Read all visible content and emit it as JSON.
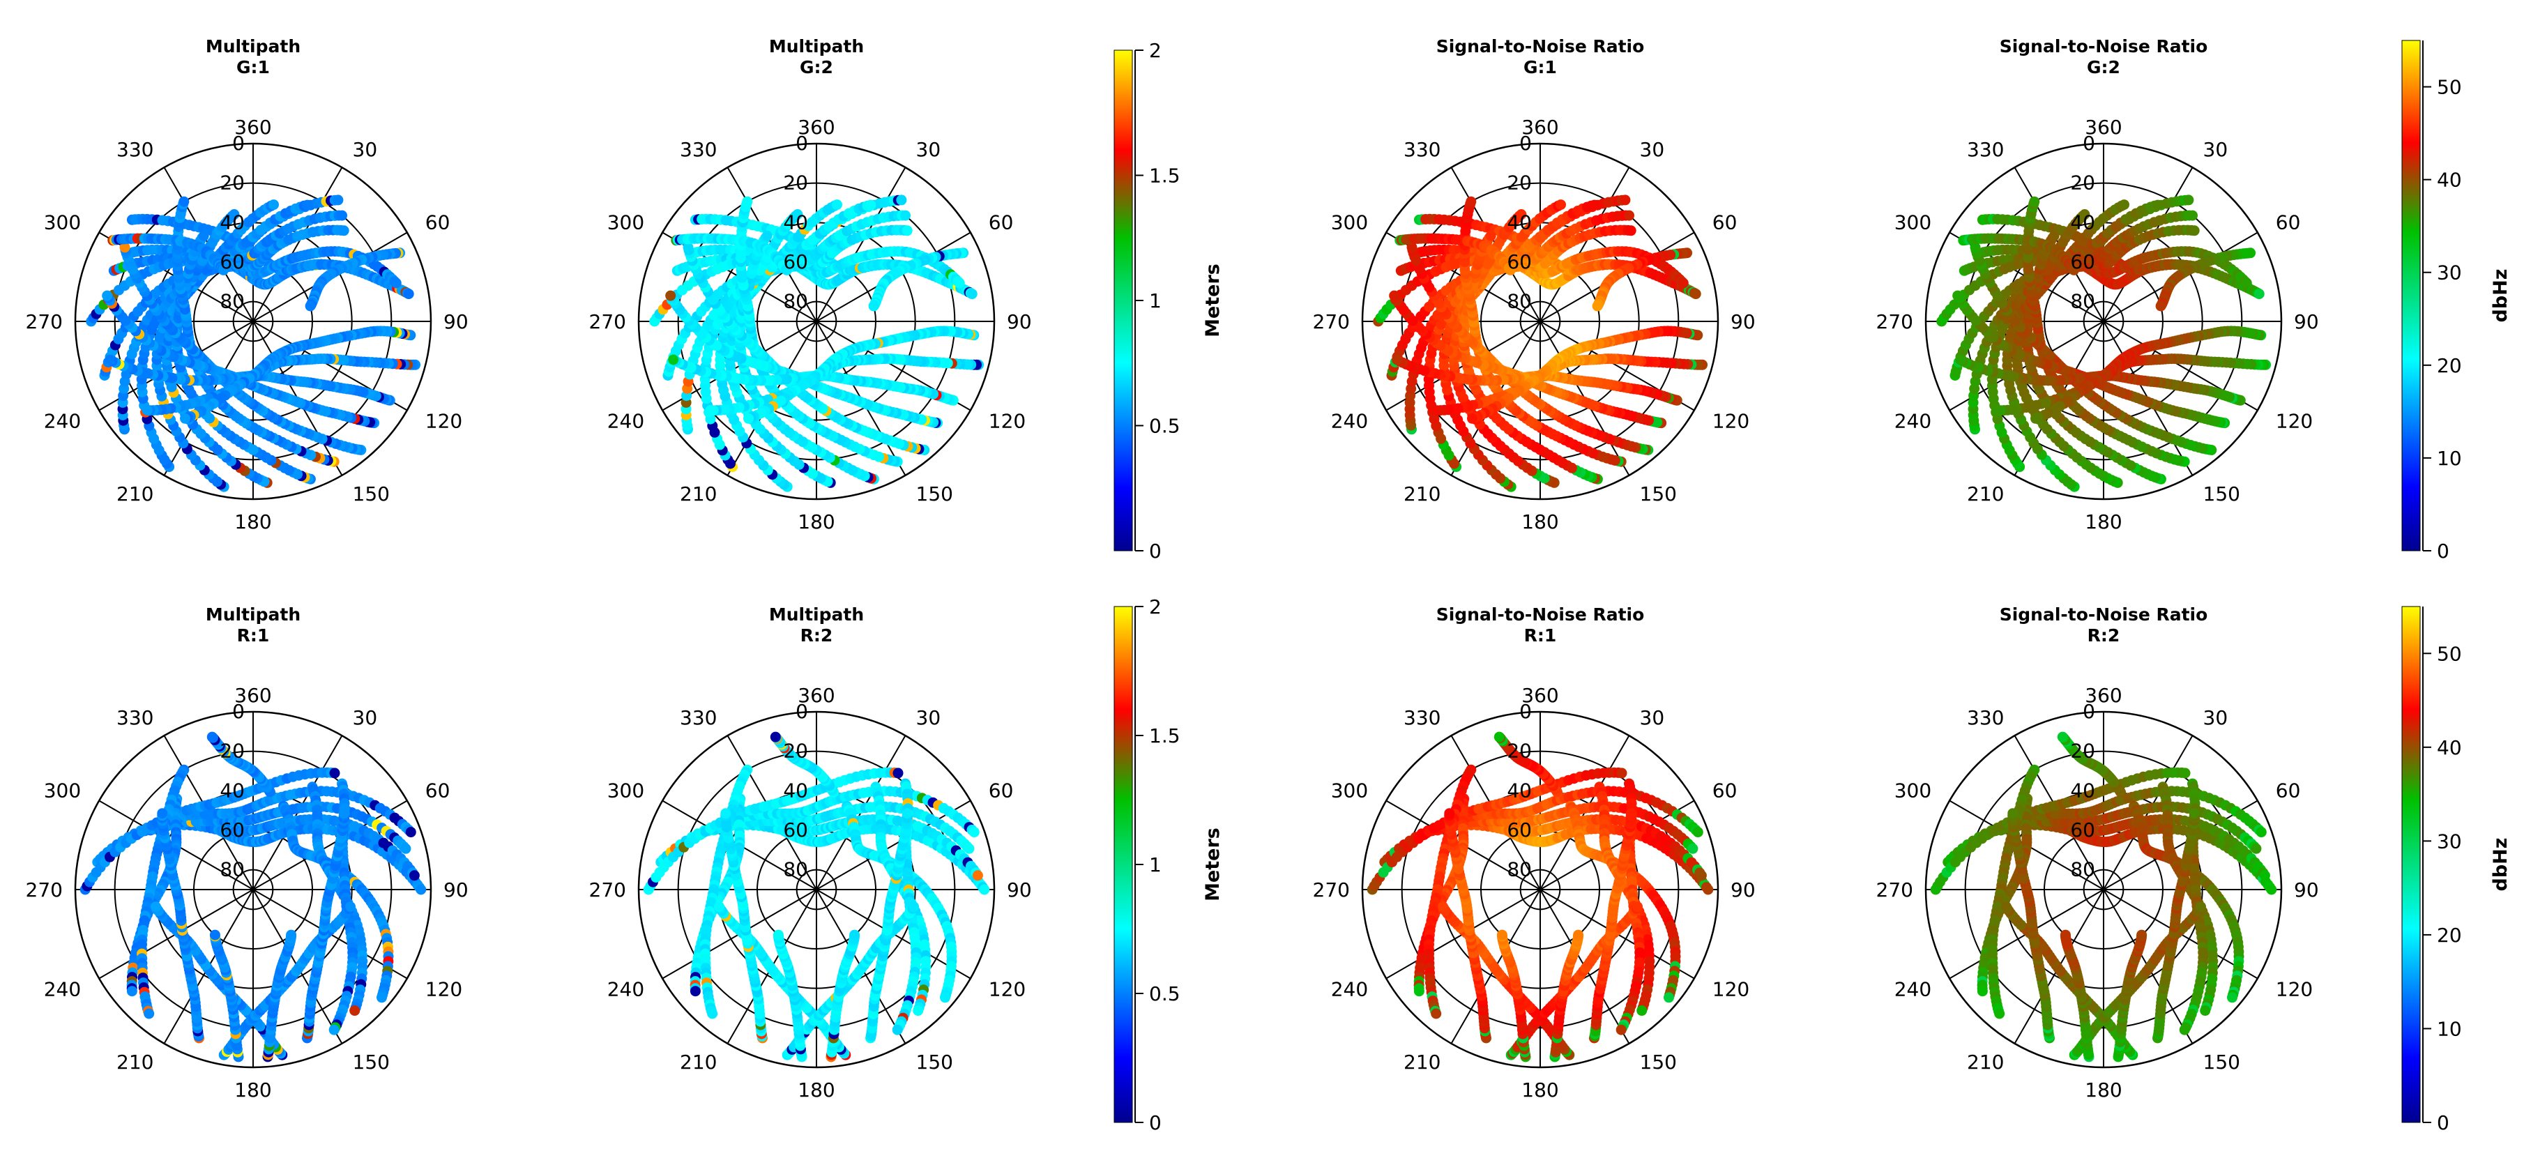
{
  "chart_data": [
    {
      "type": "polar-scatter",
      "title": "Multipath",
      "subtitle": "G:1",
      "metric": "multipath",
      "angle_ticks": [
        "360",
        "30",
        "60",
        "90",
        "120",
        "150",
        "180",
        "210",
        "240",
        "270",
        "300",
        "330"
      ],
      "radial_ticks": [
        "0",
        "20",
        "40",
        "60",
        "80"
      ],
      "color_range": [
        0,
        2
      ],
      "color_unit": "Meters"
    },
    {
      "type": "polar-scatter",
      "title": "Multipath",
      "subtitle": "G:2",
      "metric": "multipath",
      "angle_ticks": [
        "360",
        "30",
        "60",
        "90",
        "120",
        "150",
        "180",
        "210",
        "240",
        "270",
        "300",
        "330"
      ],
      "radial_ticks": [
        "0",
        "20",
        "40",
        "60",
        "80"
      ],
      "color_range": [
        0,
        2
      ],
      "color_unit": "Meters"
    },
    {
      "type": "polar-scatter",
      "title": "Signal-to-Noise Ratio",
      "subtitle": "G:1",
      "metric": "snr",
      "angle_ticks": [
        "360",
        "30",
        "60",
        "90",
        "120",
        "150",
        "180",
        "210",
        "240",
        "270",
        "300",
        "330"
      ],
      "radial_ticks": [
        "0",
        "20",
        "40",
        "60",
        "80"
      ],
      "color_range": [
        0,
        55
      ],
      "color_unit": "dbHz"
    },
    {
      "type": "polar-scatter",
      "title": "Signal-to-Noise Ratio",
      "subtitle": "G:2",
      "metric": "snr",
      "angle_ticks": [
        "360",
        "30",
        "60",
        "90",
        "120",
        "150",
        "180",
        "210",
        "240",
        "270",
        "300",
        "330"
      ],
      "radial_ticks": [
        "0",
        "20",
        "40",
        "60",
        "80"
      ],
      "color_range": [
        0,
        55
      ],
      "color_unit": "dbHz"
    },
    {
      "type": "polar-scatter",
      "title": "Multipath",
      "subtitle": "R:1",
      "metric": "multipath",
      "angle_ticks": [
        "360",
        "30",
        "60",
        "90",
        "120",
        "150",
        "180",
        "210",
        "240",
        "270",
        "300",
        "330"
      ],
      "radial_ticks": [
        "0",
        "20",
        "40",
        "60",
        "80"
      ],
      "color_range": [
        0,
        2
      ],
      "color_unit": "Meters"
    },
    {
      "type": "polar-scatter",
      "title": "Multipath",
      "subtitle": "R:2",
      "metric": "multipath",
      "angle_ticks": [
        "360",
        "30",
        "60",
        "90",
        "120",
        "150",
        "180",
        "210",
        "240",
        "270",
        "300",
        "330"
      ],
      "radial_ticks": [
        "0",
        "20",
        "40",
        "60",
        "80"
      ],
      "color_range": [
        0,
        2
      ],
      "color_unit": "Meters"
    },
    {
      "type": "polar-scatter",
      "title": "Signal-to-Noise Ratio",
      "subtitle": "R:1",
      "metric": "snr",
      "angle_ticks": [
        "360",
        "30",
        "60",
        "90",
        "120",
        "150",
        "180",
        "210",
        "240",
        "270",
        "300",
        "330"
      ],
      "radial_ticks": [
        "0",
        "20",
        "40",
        "60",
        "80"
      ],
      "color_range": [
        0,
        55
      ],
      "color_unit": "dbHz"
    },
    {
      "type": "polar-scatter",
      "title": "Signal-to-Noise Ratio",
      "subtitle": "R:2",
      "metric": "snr",
      "angle_ticks": [
        "360",
        "30",
        "60",
        "90",
        "120",
        "150",
        "180",
        "210",
        "240",
        "270",
        "300",
        "330"
      ],
      "radial_ticks": [
        "0",
        "20",
        "40",
        "60",
        "80"
      ],
      "color_range": [
        0,
        55
      ],
      "color_unit": "dbHz"
    }
  ],
  "colorbars": [
    {
      "metric": "multipath",
      "label": "Meters",
      "ticks": [
        "0",
        "0.5",
        "1",
        "1.5",
        "2"
      ],
      "tick_values": [
        0,
        0.5,
        1,
        1.5,
        2
      ],
      "range": [
        0,
        2
      ]
    },
    {
      "metric": "snr",
      "label": "dbHz",
      "ticks": [
        "0",
        "10",
        "20",
        "30",
        "40",
        "50"
      ],
      "tick_values": [
        0,
        10,
        20,
        30,
        40,
        50
      ],
      "range": [
        0,
        55
      ]
    }
  ]
}
